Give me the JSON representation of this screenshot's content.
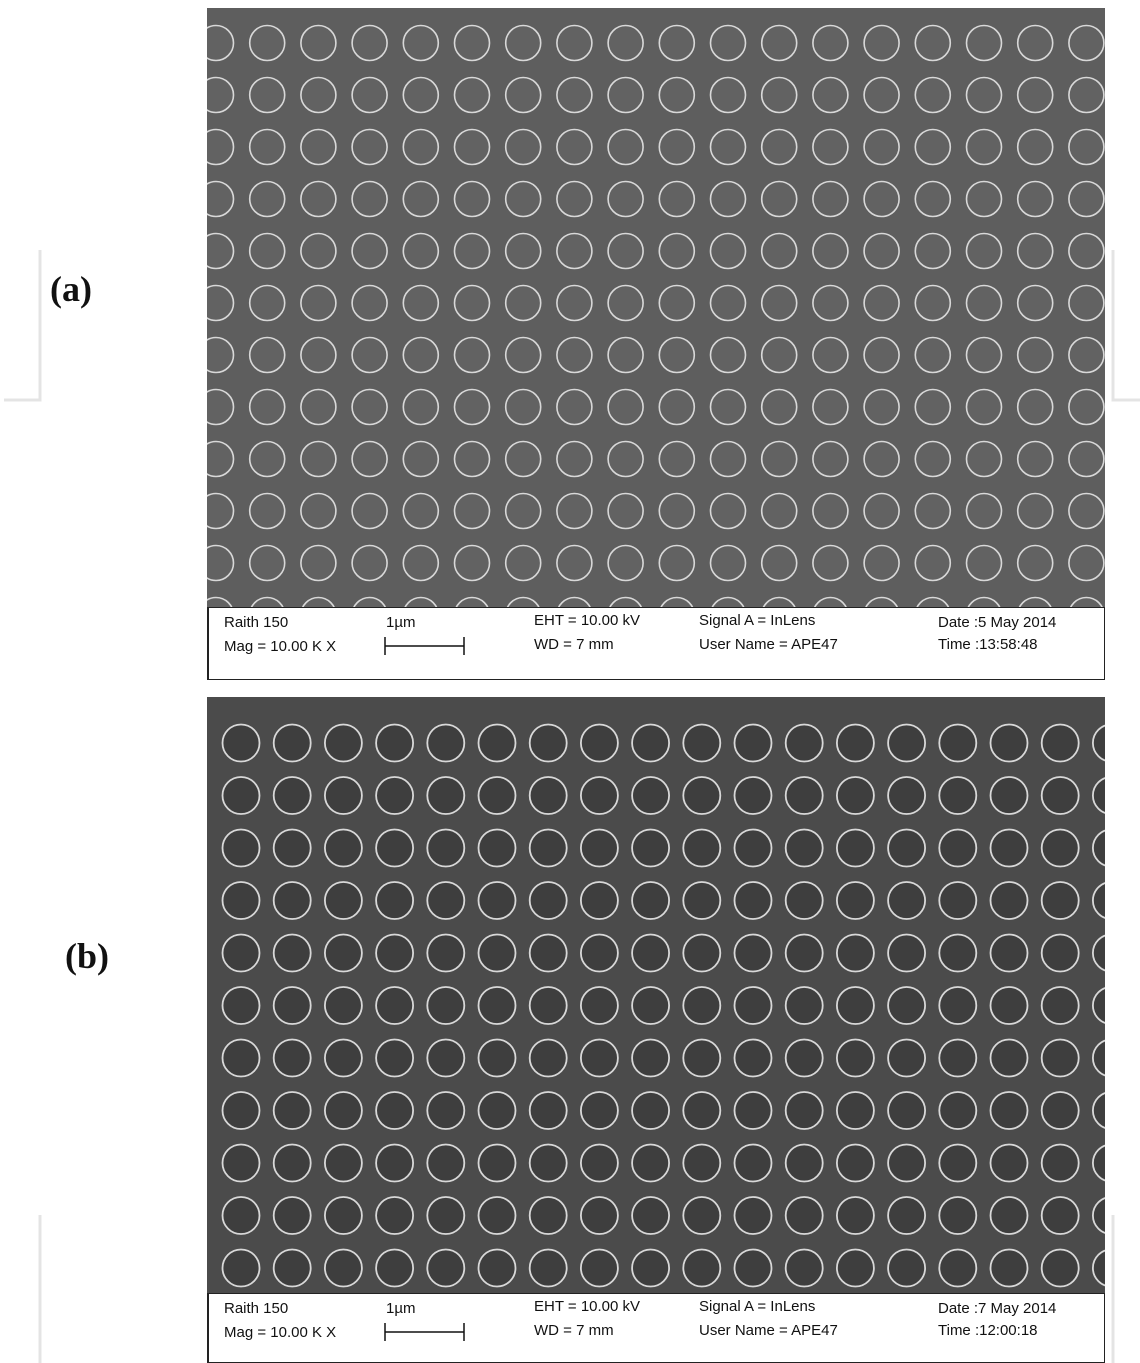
{
  "panels": [
    {
      "label": "(a)",
      "instrument": "Raith 150",
      "mag": "Mag =  10.00 K X",
      "scale": "1µm",
      "eht": "EHT = 10.00 kV",
      "wd": "WD =    7 mm",
      "signal": "Signal A = InLens",
      "user": "User Name = APE47",
      "date": "Date :5 May 2014",
      "time": "Time :13:58:48"
    },
    {
      "label": "(b)",
      "instrument": "Raith 150",
      "mag": "Mag =  10.00 K X",
      "scale": "1µm",
      "eht": "EHT = 10.00 kV",
      "wd": "WD =    7 mm",
      "signal": "Signal A = InLens",
      "user": "User Name = APE47",
      "date": "Date :7 May 2014",
      "time": "Time :12:00:18"
    }
  ],
  "colors": {
    "panel_a_background": "#5e5e5e",
    "panel_b_background": "#4b4b4b",
    "ring": "#d8d8d8",
    "watermark": "#e2e2e2"
  },
  "icons": [
    "open-access-watermark-icon"
  ]
}
